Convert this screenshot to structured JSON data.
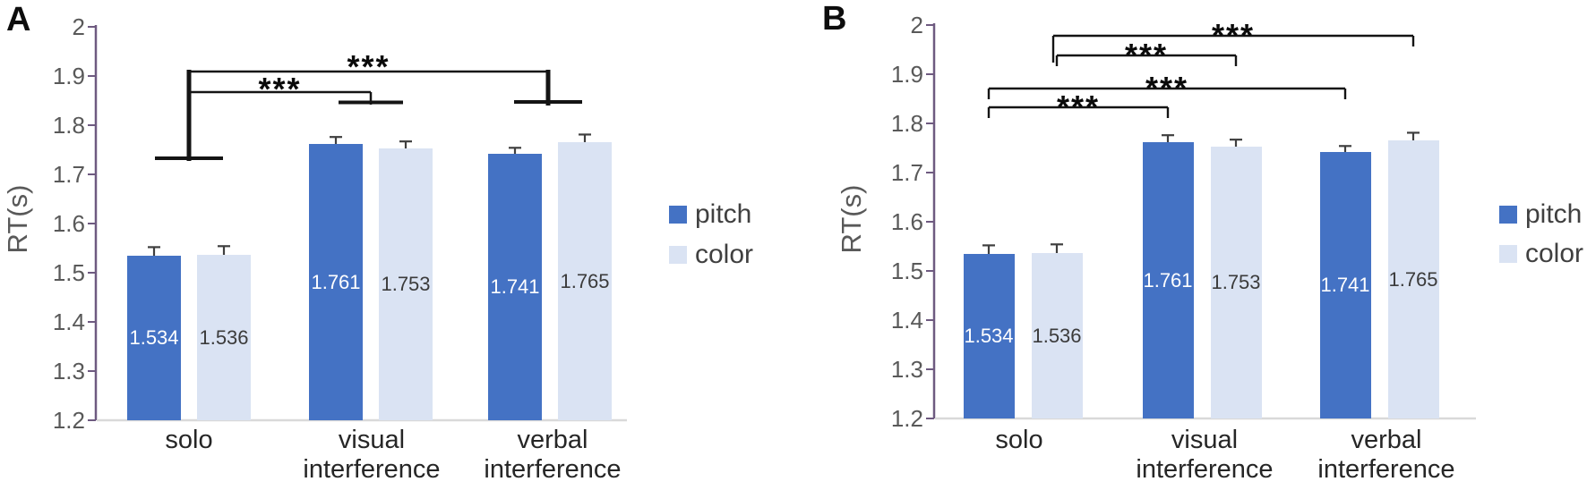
{
  "chart_data": [
    {
      "panel": "A",
      "type": "bar",
      "ylabel": "RT(s)",
      "ylim": [
        1.2,
        2
      ],
      "ytick_labels": [
        "2",
        "1.9",
        "1.8",
        "1.7",
        "1.6",
        "1.5",
        "1.4",
        "1.3",
        "1.2"
      ],
      "categories": [
        "solo",
        "visual interference",
        "verbal interference"
      ],
      "category_label_lines": [
        [
          "solo"
        ],
        [
          "visual",
          "interference"
        ],
        [
          "verbal",
          "interference"
        ]
      ],
      "series": [
        {
          "name": "pitch",
          "color": "#4472C4",
          "label_color": "#ffffff",
          "values": [
            1.534,
            1.761,
            1.741
          ],
          "value_labels": [
            "1.534",
            "1.761",
            "1.741"
          ],
          "errors": [
            0.018,
            0.015,
            0.013
          ]
        },
        {
          "name": "color",
          "color": "#DAE3F3",
          "label_color": "#3b3b3b",
          "values": [
            1.536,
            1.753,
            1.765
          ],
          "value_labels": [
            "1.536",
            "1.753",
            "1.765"
          ],
          "errors": [
            0.018,
            0.014,
            0.016
          ]
        }
      ],
      "significance": [
        {
          "label": "***",
          "compare": [
            "solo",
            "verbal interference"
          ]
        },
        {
          "label": "***",
          "compare": [
            "solo",
            "visual interference"
          ]
        }
      ],
      "legend": [
        "pitch",
        "color"
      ],
      "legend_position": "right",
      "grid": false
    },
    {
      "panel": "B",
      "type": "bar",
      "ylabel": "RT(s)",
      "ylim": [
        1.2,
        2
      ],
      "ytick_labels": [
        "2",
        "1.9",
        "1.8",
        "1.7",
        "1.6",
        "1.5",
        "1.4",
        "1.3",
        "1.2"
      ],
      "categories": [
        "solo",
        "visual interference",
        "verbal interference"
      ],
      "category_label_lines": [
        [
          "solo"
        ],
        [
          "visual",
          "interference"
        ],
        [
          "verbal",
          "interference"
        ]
      ],
      "series": [
        {
          "name": "pitch",
          "color": "#4472C4",
          "label_color": "#ffffff",
          "values": [
            1.534,
            1.761,
            1.741
          ],
          "value_labels": [
            "1.534",
            "1.761",
            "1.741"
          ],
          "errors": [
            0.018,
            0.015,
            0.013
          ]
        },
        {
          "name": "color",
          "color": "#DAE3F3",
          "label_color": "#3b3b3b",
          "values": [
            1.536,
            1.753,
            1.765
          ],
          "value_labels": [
            "1.536",
            "1.753",
            "1.765"
          ],
          "errors": [
            0.018,
            0.014,
            0.016
          ]
        }
      ],
      "significance": [
        {
          "label": "***",
          "compare": [
            "solo:color",
            "verbal interference:color"
          ]
        },
        {
          "label": "***",
          "compare": [
            "solo:color",
            "visual interference:color"
          ]
        },
        {
          "label": "***",
          "compare": [
            "solo:pitch",
            "verbal interference:pitch"
          ]
        },
        {
          "label": "***",
          "compare": [
            "solo:pitch",
            "visual interference:pitch"
          ]
        }
      ],
      "legend": [
        "pitch",
        "color"
      ],
      "legend_position": "right",
      "grid": false
    }
  ],
  "style_colors": {
    "axis_line": "#6E5A80",
    "axis_text": "#595959",
    "baseline": "#D9D9D9",
    "error_bar": "#3f3f3f",
    "bracket": "#141414"
  }
}
